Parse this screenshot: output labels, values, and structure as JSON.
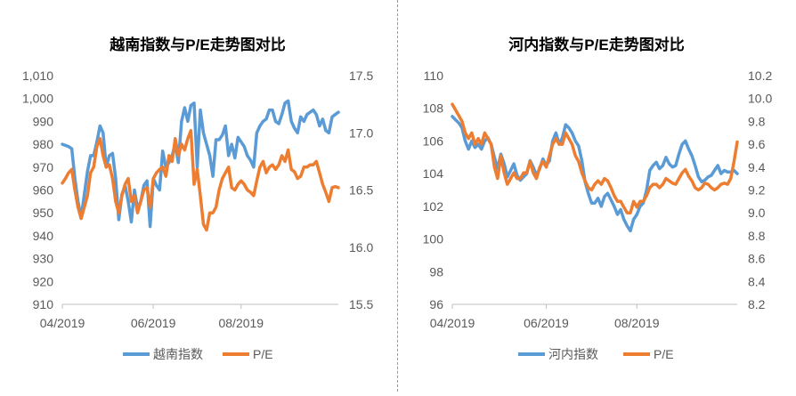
{
  "colors": {
    "index_series": "#5B9BD5",
    "pe_series": "#ED7D31",
    "tick_text": "#595959",
    "title_text": "#000000",
    "axis_line": "#BFBFBF"
  },
  "chart_data": [
    {
      "type": "line",
      "title": "越南指数与P/E走势图对比",
      "x_ticks": [
        "04/2019",
        "06/2019",
        "08/2019"
      ],
      "x_range": [
        0,
        88
      ],
      "x_tick_positions": [
        0,
        29,
        57
      ],
      "y_left": {
        "min": 910,
        "max": 1010,
        "ticks": [
          "910",
          "920",
          "930",
          "940",
          "950",
          "960",
          "970",
          "980",
          "990",
          "1,000",
          "1,010"
        ]
      },
      "y_right": {
        "min": 15.5,
        "max": 17.5,
        "ticks": [
          "15.5",
          "16.0",
          "16.5",
          "17.0",
          "17.5"
        ]
      },
      "legend_position": "bottom",
      "series": [
        {
          "name": "越南指数",
          "axis": "left",
          "color": "#5B9BD5",
          "values": [
            980,
            979.5,
            979,
            978,
            965,
            955,
            948,
            958,
            968,
            975,
            975,
            981,
            988,
            985,
            970,
            975,
            976,
            965,
            947,
            958,
            962,
            955,
            946,
            960,
            952,
            955,
            962,
            964,
            944,
            965,
            962,
            960,
            977,
            970,
            972,
            975,
            980,
            972,
            990,
            996,
            990,
            997,
            998,
            970,
            995,
            985,
            980,
            975,
            966,
            982,
            982,
            984,
            988,
            975,
            980,
            974,
            983,
            981,
            979,
            975,
            973,
            970,
            985,
            988,
            990,
            991,
            995,
            995,
            990,
            989,
            993,
            998,
            999,
            990,
            987,
            985,
            992,
            990,
            993,
            994,
            995,
            993,
            988,
            991,
            986,
            985,
            992,
            993,
            994
          ]
        },
        {
          "name": "P/E",
          "axis": "right",
          "color": "#ED7D31",
          "values": [
            16.56,
            16.6,
            16.65,
            16.68,
            16.5,
            16.35,
            16.25,
            16.35,
            16.45,
            16.65,
            16.7,
            16.88,
            16.95,
            16.8,
            16.7,
            16.72,
            16.6,
            16.4,
            16.3,
            16.45,
            16.55,
            16.6,
            16.4,
            16.45,
            16.3,
            16.4,
            16.5,
            16.52,
            16.35,
            16.6,
            16.65,
            16.68,
            16.7,
            16.62,
            16.8,
            16.75,
            16.95,
            16.8,
            16.9,
            16.85,
            16.95,
            17.02,
            16.55,
            16.68,
            16.45,
            16.2,
            16.15,
            16.3,
            16.3,
            16.35,
            16.5,
            16.6,
            16.65,
            16.7,
            16.52,
            16.5,
            16.55,
            16.58,
            16.55,
            16.5,
            16.48,
            16.45,
            16.58,
            16.7,
            16.75,
            16.65,
            16.7,
            16.72,
            16.68,
            16.72,
            16.8,
            16.75,
            16.85,
            16.68,
            16.66,
            16.6,
            16.62,
            16.7,
            16.7,
            16.72,
            16.72,
            16.75,
            16.65,
            16.55,
            16.48,
            16.4,
            16.52,
            16.53,
            16.52
          ]
        }
      ]
    },
    {
      "type": "line",
      "title": "河内指数与P/E走势图对比",
      "x_ticks": [
        "04/2019",
        "06/2019",
        "08/2019"
      ],
      "x_range": [
        0,
        88
      ],
      "x_tick_positions": [
        0,
        29,
        57
      ],
      "y_left": {
        "min": 96,
        "max": 110,
        "ticks": [
          "96",
          "98",
          "100",
          "102",
          "104",
          "106",
          "108",
          "110"
        ]
      },
      "y_right": {
        "min": 8.2,
        "max": 10.2,
        "ticks": [
          "8.2",
          "8.4",
          "8.6",
          "8.8",
          "9.0",
          "9.2",
          "9.4",
          "9.6",
          "9.8",
          "10.0",
          "10.2"
        ]
      },
      "legend_position": "bottom",
      "series": [
        {
          "name": "河内指数",
          "axis": "left",
          "color": "#5B9BD5",
          "values": [
            107.5,
            107.3,
            107.1,
            106.8,
            106,
            105.5,
            106,
            105.6,
            105.8,
            105.5,
            106,
            106.2,
            105.8,
            105,
            104.3,
            105.2,
            104.6,
            103.8,
            104.2,
            104.6,
            103.9,
            103.6,
            103.8,
            104,
            104.8,
            104.4,
            103.9,
            104.3,
            104.9,
            104.5,
            104.8,
            106,
            106.5,
            105.8,
            106.2,
            107,
            106.8,
            106.5,
            106,
            105.7,
            104.8,
            103.5,
            102.8,
            102.2,
            102.2,
            102.5,
            102,
            102.6,
            102.8,
            102.4,
            102,
            101.5,
            101.8,
            101.2,
            100.8,
            100.5,
            101.2,
            101.5,
            102,
            102.2,
            103,
            104.2,
            104.5,
            104.7,
            104.3,
            104.5,
            105,
            104.6,
            104.4,
            104.5,
            105.2,
            105.8,
            106,
            105.5,
            105.1,
            104.5,
            103.8,
            103.5,
            103.6,
            103.8,
            103.9,
            104.2,
            104.5,
            104,
            104.2,
            104.1,
            104.1,
            104.2,
            104
          ]
        },
        {
          "name": "P/E",
          "axis": "right",
          "color": "#ED7D31",
          "values": [
            9.95,
            9.9,
            9.85,
            9.8,
            9.7,
            9.65,
            9.7,
            9.6,
            9.65,
            9.6,
            9.7,
            9.65,
            9.6,
            9.4,
            9.3,
            9.5,
            9.35,
            9.25,
            9.3,
            9.35,
            9.3,
            9.3,
            9.35,
            9.35,
            9.45,
            9.35,
            9.3,
            9.4,
            9.45,
            9.4,
            9.5,
            9.6,
            9.65,
            9.6,
            9.6,
            9.7,
            9.65,
            9.6,
            9.5,
            9.45,
            9.35,
            9.28,
            9.22,
            9.2,
            9.25,
            9.28,
            9.25,
            9.3,
            9.28,
            9.22,
            9.15,
            9.1,
            9.1,
            9.05,
            9.0,
            9.0,
            9.1,
            9.05,
            9.1,
            9.1,
            9.15,
            9.22,
            9.25,
            9.25,
            9.22,
            9.25,
            9.3,
            9.28,
            9.26,
            9.25,
            9.3,
            9.35,
            9.38,
            9.32,
            9.28,
            9.22,
            9.2,
            9.22,
            9.26,
            9.25,
            9.22,
            9.2,
            9.22,
            9.25,
            9.26,
            9.25,
            9.3,
            9.45,
            9.62
          ]
        }
      ]
    }
  ]
}
